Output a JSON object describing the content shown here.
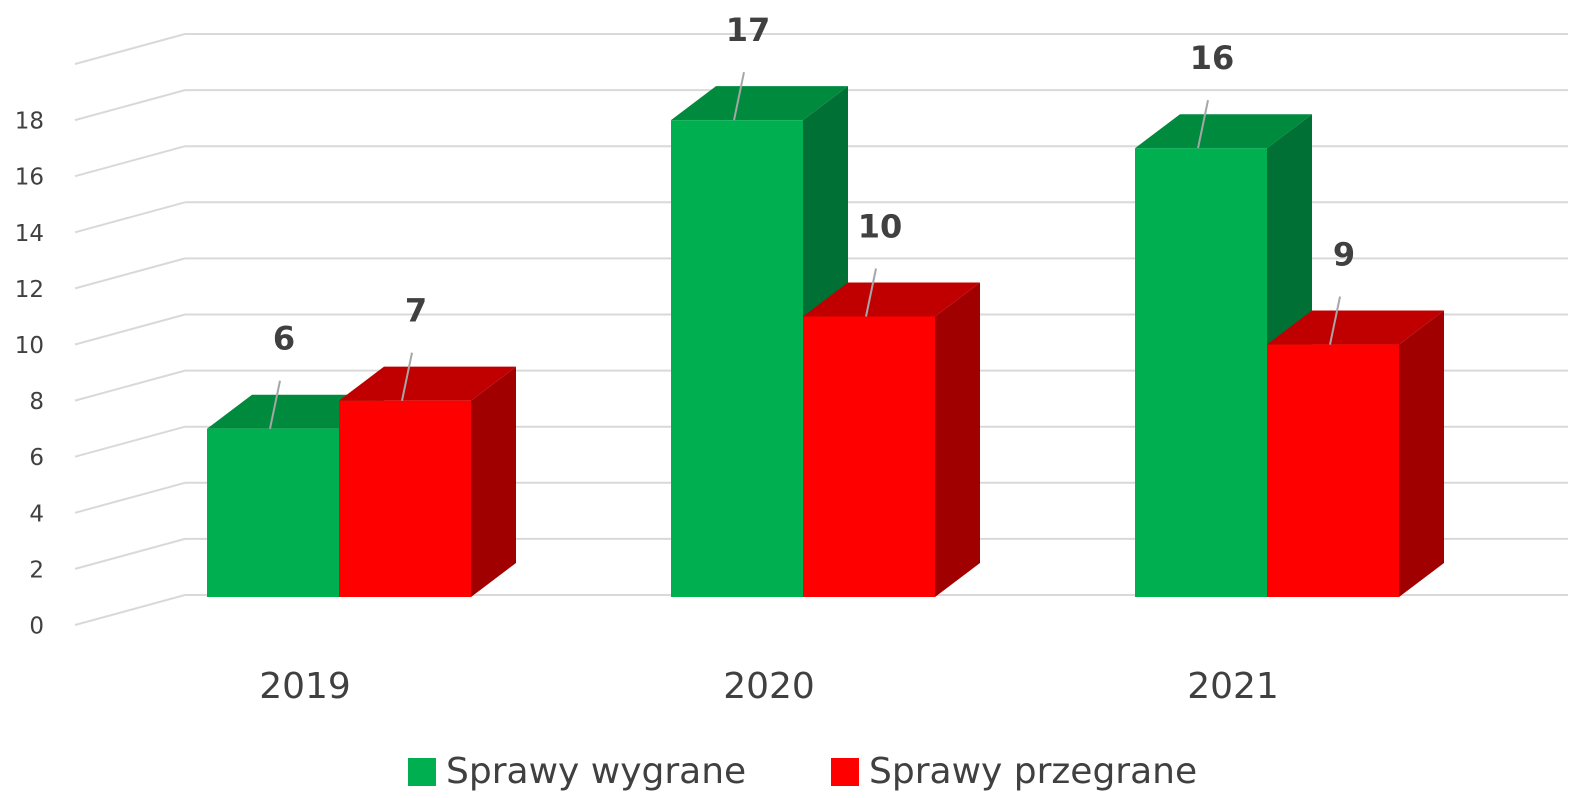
{
  "chart_data": {
    "type": "bar3d",
    "categories": [
      "2019",
      "2020",
      "2021"
    ],
    "series": [
      {
        "name": "Sprawy wygrane",
        "color": "#00b050",
        "values": [
          6,
          17,
          16
        ]
      },
      {
        "name": "Sprawy przegrane",
        "color": "#ff0000",
        "values": [
          7,
          10,
          9
        ]
      }
    ],
    "ylim": [
      0,
      20
    ],
    "yticks": [
      0,
      2,
      4,
      6,
      8,
      10,
      12,
      14,
      16,
      18
    ],
    "grid": true,
    "legend": "bottom"
  }
}
